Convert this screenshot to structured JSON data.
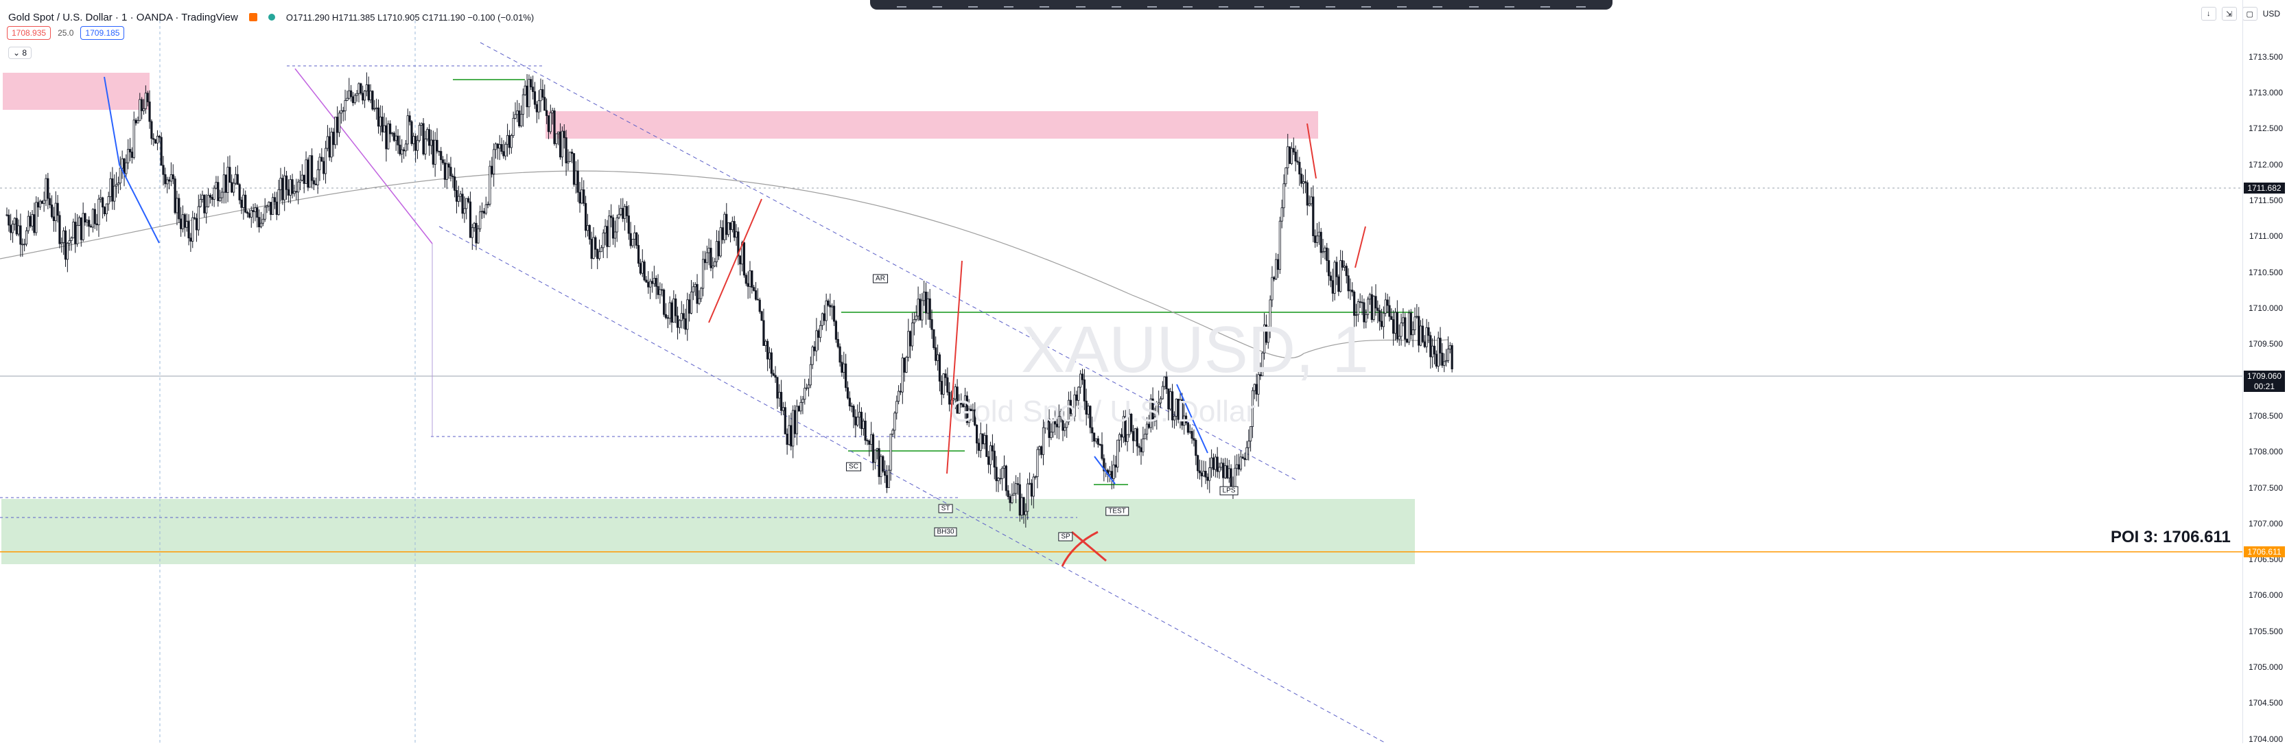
{
  "header": {
    "symbol": "Gold Spot / U.S. Dollar · 1 · OANDA · TradingView",
    "ohlc": "O1711.290 H1711.385 L1710.905 C1711.190 −0.100 (−0.01%)"
  },
  "quote": {
    "bid": "1708.935",
    "spread": "25.0",
    "ask": "1709.185"
  },
  "indicator_toggle": "⌄ 8",
  "currency": "USD",
  "watermark": {
    "symbol": "XAUUSD, 1",
    "name": "Gold Spot / U.S. Dollar"
  },
  "price_axis_labels": [
    "1713.500",
    "1713.000",
    "1712.500",
    "1712.000",
    "1711.500",
    "1711.000",
    "1710.500",
    "1710.000",
    "1709.500",
    "1708.500",
    "1708.000",
    "1707.500",
    "1707.000",
    "1706.500",
    "1706.000",
    "1705.500",
    "1705.000",
    "1704.500",
    "1704.000"
  ],
  "current_price": {
    "value": "1709.060",
    "countdown": "00:21"
  },
  "crosshair_price": "1711.682",
  "poi": {
    "text": "POI 3: 1706.611",
    "axis": "1706.611"
  },
  "annotations": [
    "AR",
    "SC",
    "ST",
    "BH30",
    "SP",
    "TEST",
    "LPS"
  ],
  "colors": {
    "up": "#131722",
    "down": "#131722",
    "supply_zone": "#f8c6d6",
    "demand_zone": "#d4ecd6",
    "poi_line": "#ff9800",
    "wyckoff_line": "#4caf50",
    "trend_dash": "#5b5fc7"
  },
  "chart_data": {
    "type": "candlestick",
    "symbol": "XAUUSD",
    "timeframe": "1",
    "ylim": [
      1703.95,
      1713.75
    ],
    "price_ticks": [
      1713.5,
      1713.0,
      1712.5,
      1712.0,
      1711.5,
      1711.0,
      1710.5,
      1710.0,
      1709.5,
      1708.5,
      1708.0,
      1707.5,
      1707.0,
      1706.5,
      1706.0,
      1705.5,
      1705.0,
      1704.5,
      1704.0
    ],
    "close_path": [
      [
        0,
        1711.3
      ],
      [
        10,
        1711.0
      ],
      [
        20,
        1711.6
      ],
      [
        30,
        1710.9
      ],
      [
        40,
        1711.2
      ],
      [
        50,
        1711.5
      ],
      [
        60,
        1711.9
      ],
      [
        70,
        1712.9
      ],
      [
        78,
        1712.2
      ],
      [
        92,
        1711.0
      ],
      [
        100,
        1711.4
      ],
      [
        110,
        1711.8
      ],
      [
        120,
        1711.6
      ],
      [
        130,
        1711.2
      ],
      [
        140,
        1711.6
      ],
      [
        150,
        1711.9
      ],
      [
        160,
        1711.9
      ],
      [
        170,
        1712.6
      ],
      [
        180,
        1713.2
      ],
      [
        190,
        1712.6
      ],
      [
        198,
        1712.2
      ],
      [
        205,
        1712.5
      ],
      [
        215,
        1712.3
      ],
      [
        228,
        1711.8
      ],
      [
        240,
        1711.0
      ],
      [
        250,
        1712.1
      ],
      [
        256,
        1712.4
      ],
      [
        268,
        1713.1
      ],
      [
        278,
        1712.6
      ],
      [
        290,
        1711.9
      ],
      [
        300,
        1710.8
      ],
      [
        315,
        1711.3
      ],
      [
        330,
        1710.3
      ],
      [
        345,
        1709.8
      ],
      [
        360,
        1710.7
      ],
      [
        370,
        1711.3
      ],
      [
        378,
        1710.5
      ],
      [
        388,
        1709.5
      ],
      [
        400,
        1708.2
      ],
      [
        410,
        1709.1
      ],
      [
        420,
        1710.2
      ],
      [
        430,
        1708.7
      ],
      [
        440,
        1708.3
      ],
      [
        450,
        1707.5
      ],
      [
        455,
        1708.8
      ],
      [
        463,
        1709.8
      ],
      [
        470,
        1710.1
      ],
      [
        478,
        1709.0
      ],
      [
        485,
        1708.7
      ],
      [
        492,
        1708.6
      ],
      [
        500,
        1708.0
      ],
      [
        510,
        1707.6
      ],
      [
        520,
        1707.2
      ],
      [
        530,
        1708.2
      ],
      [
        540,
        1708.5
      ],
      [
        550,
        1708.9
      ],
      [
        560,
        1707.9
      ],
      [
        565,
        1707.5
      ],
      [
        570,
        1708.4
      ],
      [
        580,
        1708.2
      ],
      [
        590,
        1708.9
      ],
      [
        600,
        1708.5
      ],
      [
        610,
        1707.8
      ],
      [
        620,
        1707.7
      ],
      [
        630,
        1707.6
      ],
      [
        640,
        1709.1
      ],
      [
        650,
        1710.7
      ],
      [
        655,
        1712.2
      ],
      [
        662,
        1711.9
      ],
      [
        670,
        1711.0
      ],
      [
        678,
        1710.4
      ],
      [
        685,
        1710.5
      ],
      [
        690,
        1710.0
      ],
      [
        700,
        1710.0
      ],
      [
        710,
        1709.8
      ],
      [
        720,
        1709.7
      ],
      [
        730,
        1709.4
      ],
      [
        740,
        1709.3
      ]
    ]
  }
}
